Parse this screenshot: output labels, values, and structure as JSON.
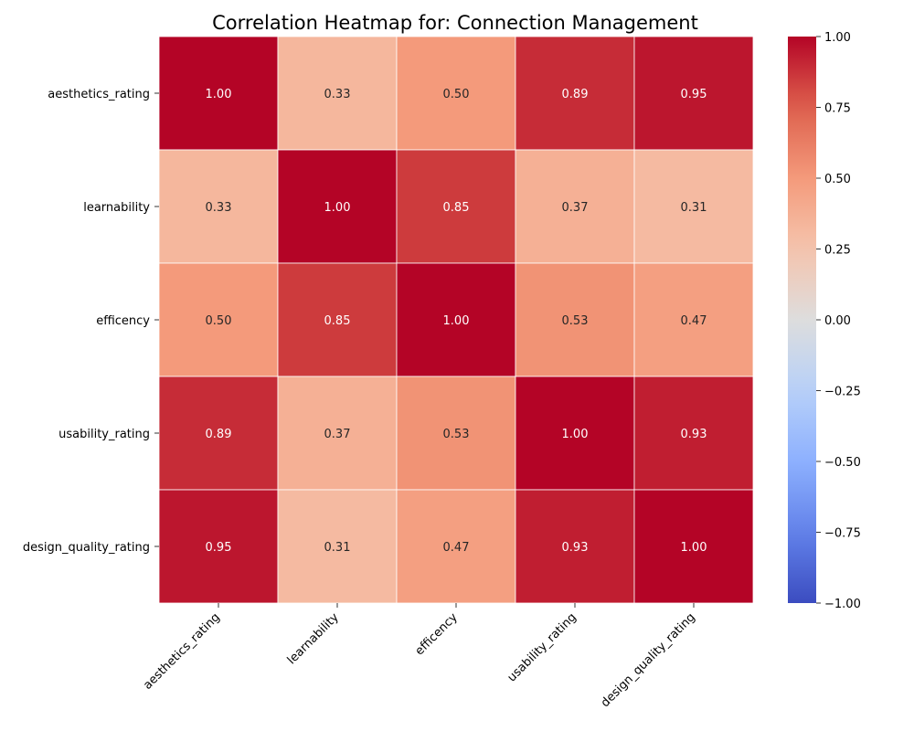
{
  "chart_data": {
    "type": "heatmap",
    "title": "Correlation Heatmap for: Connection Management",
    "x_labels": [
      "aesthetics_rating",
      "learnability",
      "efficency",
      "usability_rating",
      "design_quality_rating"
    ],
    "y_labels": [
      "aesthetics_rating",
      "learnability",
      "efficency",
      "usability_rating",
      "design_quality_rating"
    ],
    "values": [
      [
        1.0,
        0.33,
        0.5,
        0.89,
        0.95
      ],
      [
        0.33,
        1.0,
        0.85,
        0.37,
        0.31
      ],
      [
        0.5,
        0.85,
        1.0,
        0.53,
        0.47
      ],
      [
        0.89,
        0.37,
        0.53,
        1.0,
        0.93
      ],
      [
        0.95,
        0.31,
        0.47,
        0.93,
        1.0
      ]
    ],
    "value_format": "0.00",
    "colormap": "coolwarm",
    "vmin": -1.0,
    "vmax": 1.0,
    "colorbar_ticks": [
      "1.00",
      "0.75",
      "0.50",
      "0.25",
      "0.00",
      "−0.25",
      "−0.50",
      "−0.75",
      "−1.00"
    ],
    "grid_line_color": "#ffffff"
  }
}
